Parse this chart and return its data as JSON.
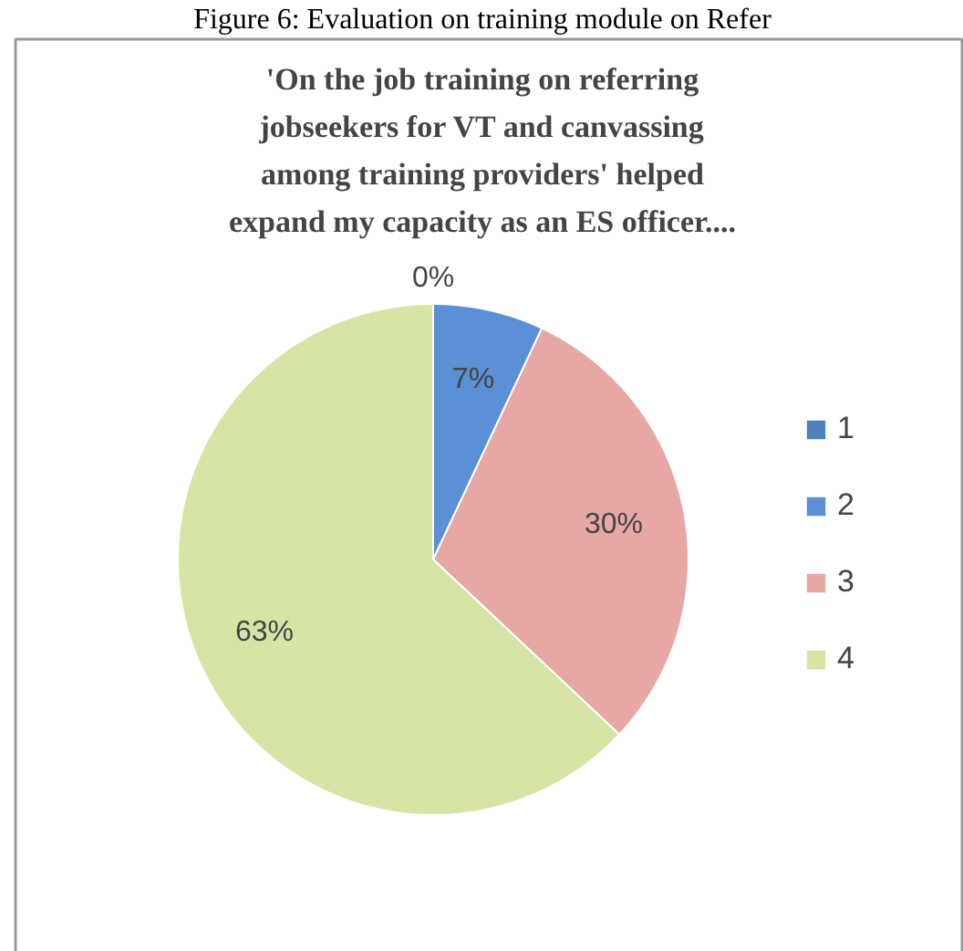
{
  "chart_data": {
    "type": "pie",
    "title": "'On the job training on referring\njobseekers for VT and canvassing\namong training providers' helped\nexpand my capacity as an ES officer....",
    "annotations": [
      "Figure 6: Evaluation on training module on Refer"
    ],
    "categories": [
      "1",
      "2",
      "3",
      "4"
    ],
    "values": [
      0,
      7,
      30,
      63
    ],
    "colors": [
      "#4f81bd",
      "#5b8fd6",
      "#e6a7a5",
      "#d6e4a6"
    ],
    "value_labels": [
      "0%",
      "7%",
      "30%",
      "63%"
    ],
    "legend": "right"
  }
}
